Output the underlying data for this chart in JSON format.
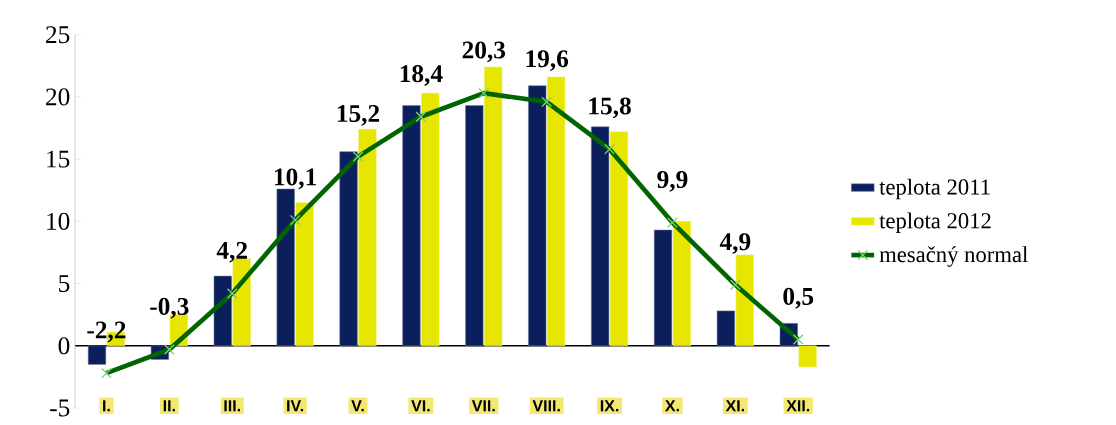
{
  "chart_data": {
    "type": "bar",
    "categories": [
      "I.",
      "II.",
      "III.",
      "IV.",
      "V.",
      "VI.",
      "VII.",
      "VIII.",
      "IX.",
      "X.",
      "XI.",
      "XII."
    ],
    "series": [
      {
        "name": "teplota 2011",
        "color": "#0a1f5c",
        "values": [
          -1.5,
          -1.1,
          5.6,
          12.6,
          15.6,
          19.3,
          19.3,
          20.9,
          17.6,
          9.3,
          2.8,
          1.8
        ]
      },
      {
        "name": "teplota 2012",
        "color": "#e6e600",
        "values": [
          1.1,
          2.5,
          7.0,
          11.5,
          17.4,
          20.3,
          22.4,
          21.6,
          17.2,
          10.0,
          7.3,
          -1.7
        ]
      },
      {
        "name": "mesačný normal",
        "type": "line",
        "color": "#006400",
        "marker": "cross",
        "values": [
          -2.2,
          -0.3,
          4.2,
          10.1,
          15.2,
          18.4,
          20.3,
          19.6,
          15.8,
          9.9,
          4.9,
          0.5
        ],
        "value_labels": [
          "-2,2",
          "-0,3",
          "4,2",
          "10,1",
          "15,2",
          "18,4",
          "20,3",
          "19,6",
          "15,8",
          "9,9",
          "4,9",
          "0,5"
        ]
      }
    ],
    "ylim": [
      -5,
      25
    ],
    "yticks": [
      -5,
      0,
      5,
      10,
      15,
      20,
      25
    ],
    "legend": "right"
  }
}
